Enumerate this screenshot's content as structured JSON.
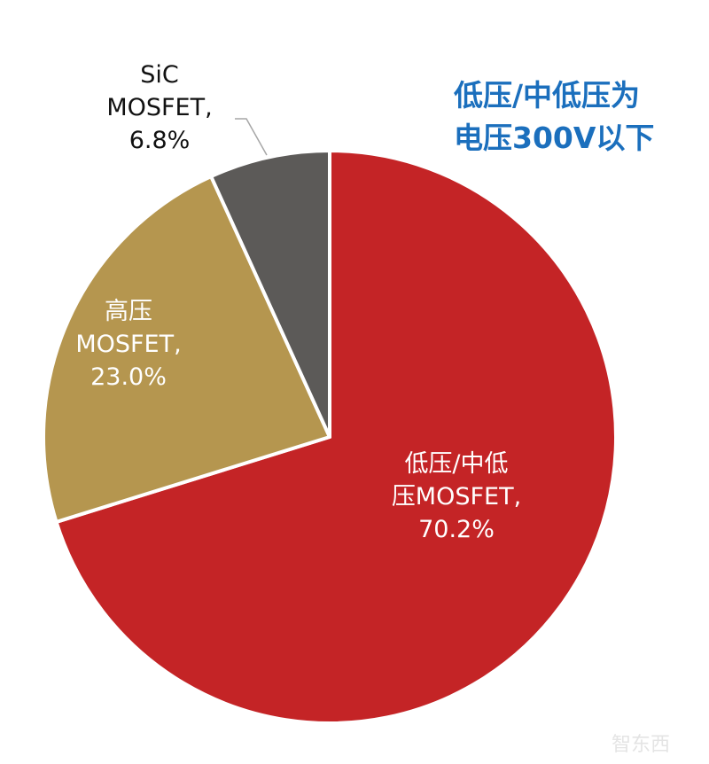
{
  "chart_data": {
    "type": "pie",
    "title": "",
    "categories": [
      "低压/中低压MOSFET",
      "高压MOSFET",
      "SiC MOSFET"
    ],
    "values": [
      70.2,
      23.0,
      6.8
    ],
    "unit": "%",
    "colors": [
      "#c42426",
      "#b5964f",
      "#5c5a58"
    ],
    "data_labels": [
      "低压/中低压MOSFET, 70.2%",
      "高压MOSFET, 23.0%",
      "SiC MOSFET, 6.8%"
    ],
    "start_angle_deg": 0,
    "direction": "clockwise",
    "legend": "none",
    "annotation": "低压/中低压为电压300V以下"
  },
  "labels": {
    "low": {
      "line1": "低压/中低",
      "line2": "压MOSFET,",
      "line3": "70.2%"
    },
    "high": {
      "line1": "高压",
      "line2": "MOSFET,",
      "line3": "23.0%"
    },
    "sic": {
      "line1": "SiC",
      "line2": "MOSFET,",
      "line3": "6.8%"
    }
  },
  "note": {
    "line1": "低压/中低压为",
    "line2": "电压300V以下"
  },
  "watermark": "智东西"
}
